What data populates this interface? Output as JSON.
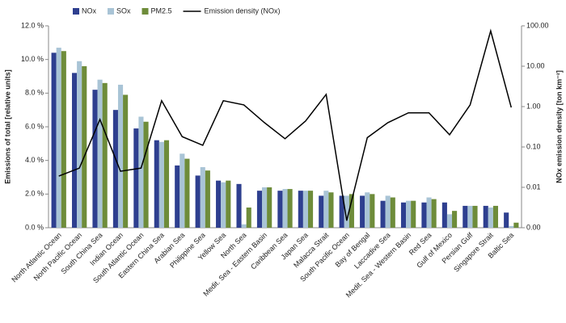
{
  "chart_data": {
    "type": "bar",
    "y_label": "Emissions of total [relative units]",
    "y2_label": "NOx emission density [ton km⁻²]",
    "categories": [
      "North Atlantic Ocean",
      "North Pacific Ocean",
      "South China Sea",
      "Indian Ocean",
      "South Atlantic Ocean",
      "Eastern China Sea",
      "Arabian Sea",
      "Philippine Sea",
      "Yellow Sea",
      "North Sea",
      "Medit. Sea - Eastern Basin",
      "Caribbean Sea",
      "Japan Sea",
      "Malacca Strait",
      "South Pacific Ocean",
      "Bay of Bengal",
      "Laccadive Sea",
      "Medit. Sea - Western Basin",
      "Red Sea",
      "Gulf of Mexico",
      "Persian Gulf",
      "Singapore Strait",
      "Baltic Sea"
    ],
    "series": [
      {
        "name": "NOx",
        "color": "#2e3f8f",
        "values": [
          10.4,
          9.2,
          8.2,
          7.0,
          5.9,
          5.2,
          3.7,
          3.1,
          2.8,
          2.6,
          2.2,
          2.2,
          2.2,
          1.9,
          1.9,
          1.9,
          1.6,
          1.5,
          1.5,
          1.5,
          1.3,
          1.3,
          0.9
        ]
      },
      {
        "name": "SOx",
        "color": "#a9c4d6",
        "values": [
          10.7,
          9.9,
          8.8,
          8.5,
          6.6,
          5.1,
          4.4,
          3.6,
          2.7,
          0.2,
          2.4,
          2.3,
          2.2,
          2.2,
          1.9,
          2.1,
          1.9,
          1.6,
          1.8,
          0.8,
          1.3,
          1.2,
          0.1
        ]
      },
      {
        "name": "PM2.5",
        "color": "#6e8c3a",
        "values": [
          10.5,
          9.6,
          8.6,
          7.9,
          6.3,
          5.2,
          4.1,
          3.4,
          2.8,
          1.2,
          2.4,
          2.3,
          2.2,
          2.1,
          2.0,
          2.0,
          1.8,
          1.6,
          1.7,
          1.0,
          1.3,
          1.3,
          0.3
        ]
      },
      {
        "name": "Emission density (NOx)",
        "color": "#000000",
        "type": "line",
        "axis": "y2",
        "values": [
          0.019,
          0.03,
          0.48,
          0.025,
          0.03,
          1.4,
          0.18,
          0.11,
          1.4,
          1.1,
          0.4,
          0.16,
          0.44,
          2.0,
          0.0015,
          0.17,
          0.4,
          0.7,
          0.7,
          0.2,
          1.1,
          75,
          0.95
        ]
      }
    ],
    "ylim": [
      0,
      12
    ],
    "yticks": [
      {
        "value": 0,
        "label": "0.0 %"
      },
      {
        "value": 2,
        "label": "2.0 %"
      },
      {
        "value": 4,
        "label": "4.0 %"
      },
      {
        "value": 6,
        "label": "6.0 %"
      },
      {
        "value": 8,
        "label": "8.0 %"
      },
      {
        "value": 10,
        "label": "10.0 %"
      },
      {
        "value": 12,
        "label": "12.0 %"
      }
    ],
    "y2lim": [
      0.001,
      100
    ],
    "y2scale": "log",
    "y2ticks": [
      {
        "value": 0.001,
        "label": "0.00"
      },
      {
        "value": 0.01,
        "label": "0.01"
      },
      {
        "value": 0.1,
        "label": "0.10"
      },
      {
        "value": 1,
        "label": "1.00"
      },
      {
        "value": 10,
        "label": "10.00"
      },
      {
        "value": 100,
        "label": "100.00"
      }
    ],
    "legend": "top"
  }
}
